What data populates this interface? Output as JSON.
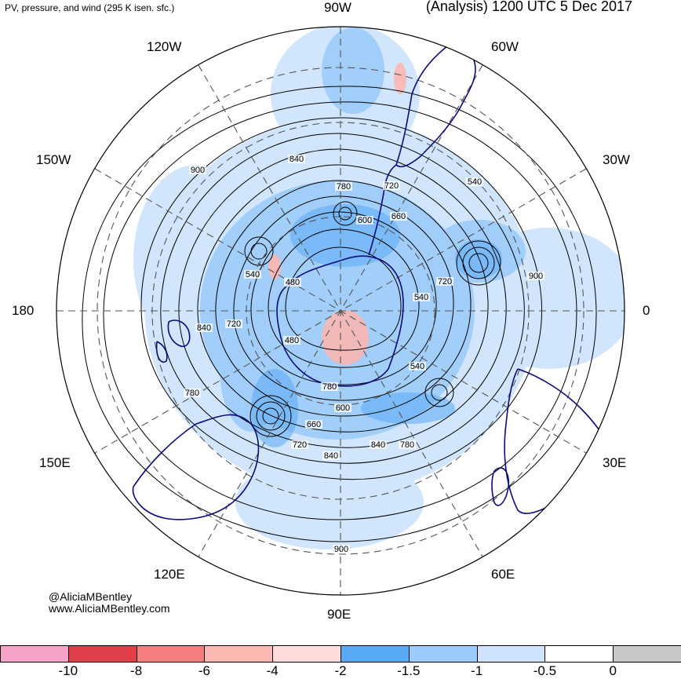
{
  "header": {
    "left_title": "PV, pressure, and wind (295 K isen. sfc.)",
    "right_title": "(Analysis) 1200 UTC 5 Dec 2017"
  },
  "map": {
    "projection": "polar stereographic (south pole centered)",
    "longitude_labels": {
      "top": "90W",
      "upper_left": "120W",
      "upper_right": "60W",
      "left_upper": "150W",
      "right_upper": "30W",
      "left": "180",
      "right": "0",
      "left_lower": "150E",
      "right_lower": "30E",
      "lower_left": "120E",
      "lower_right": "60E",
      "bottom": "90E"
    },
    "contour_labels": [
      "900",
      "840",
      "780",
      "720",
      "600",
      "660",
      "540",
      "480",
      "720",
      "780",
      "900",
      "540",
      "720",
      "840",
      "780",
      "480",
      "540",
      "600",
      "660",
      "720",
      "840",
      "840",
      "780",
      "900",
      "540"
    ],
    "colors": {
      "coastline": "#0a0a7a",
      "contour": "#000000",
      "graticule": "#555555"
    }
  },
  "credits": {
    "handle": "@AliciaMBentley",
    "website": "www.AliciaMBentley.com"
  },
  "colorbar": {
    "colors": [
      "#f7a3c9",
      "#e0404a",
      "#f47d7d",
      "#fbb7b1",
      "#fbdcd8",
      "#5aa9f5",
      "#9ccbfa",
      "#cfe4fc",
      "#ffffff",
      "#c8c8c8"
    ],
    "tick_labels": [
      "-10",
      "-8",
      "-6",
      "-4",
      "-2",
      "-1.5",
      "-1",
      "-0.5",
      "0"
    ]
  }
}
